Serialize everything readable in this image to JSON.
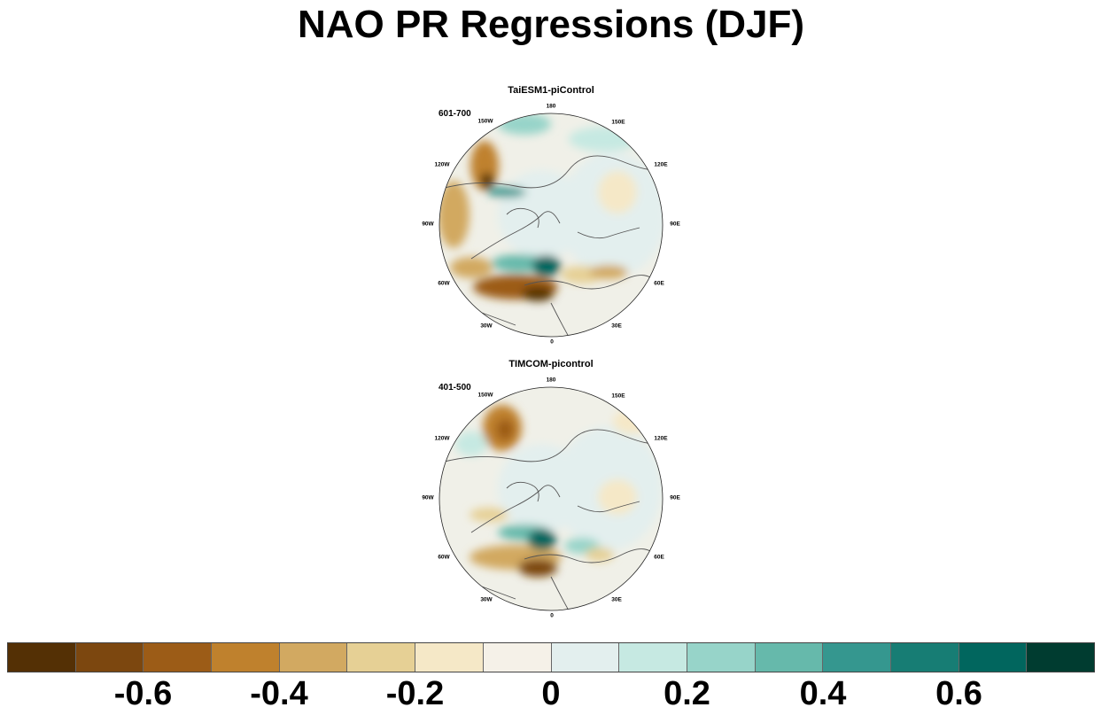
{
  "title": "NAO PR Regressions (DJF)",
  "panels": [
    {
      "title": "TaiESM1-piControl",
      "period": "601-700",
      "lon_labels": [
        "180",
        "150E",
        "120E",
        "90E",
        "60E",
        "30E",
        "0",
        "30W",
        "60W",
        "90W",
        "120W",
        "150W"
      ]
    },
    {
      "title": "TIMCOM-picontrol",
      "period": "401-500",
      "lon_labels": [
        "180",
        "150E",
        "120E",
        "90E",
        "60E",
        "30E",
        "0",
        "30W",
        "60W",
        "90W",
        "120W",
        "150W"
      ]
    }
  ],
  "colorbar": {
    "colors": [
      "#543005",
      "#7c470f",
      "#9c5c17",
      "#bf812d",
      "#d2a961",
      "#e6d095",
      "#f5e8c7",
      "#f5f1e8",
      "#e3efee",
      "#c6e9e2",
      "#97d4c9",
      "#66b9ab",
      "#35978f",
      "#177d74",
      "#01665e",
      "#003c30"
    ],
    "tick_labels": [
      "-0.6",
      "-0.4",
      "-0.2",
      "0",
      "0.2",
      "0.4",
      "0.6"
    ]
  }
}
